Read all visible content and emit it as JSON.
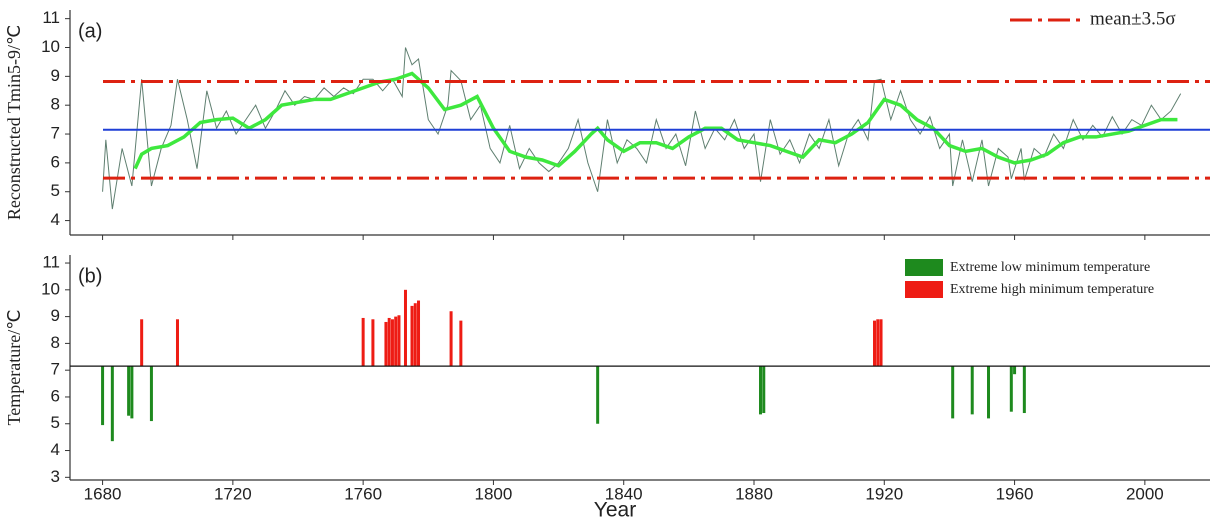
{
  "chart_data": [
    {
      "type": "line",
      "label": "(a)",
      "ylabel": "Reconstructed Tmin5-9/℃",
      "xlim": [
        1670,
        2020
      ],
      "ylim": [
        3.5,
        11.3
      ],
      "yticks": [
        4,
        5,
        6,
        7,
        8,
        9,
        10,
        11
      ],
      "mean": 7.15,
      "mean_color": "#1f3fd6",
      "bands": {
        "name": "mean±3.5σ",
        "color": "#dd2211",
        "values": [
          8.82,
          5.47
        ]
      },
      "legend": "upper right",
      "series": [
        {
          "color": "#5f7f70",
          "width": 1,
          "x": [
            1680,
            1681,
            1683,
            1686,
            1689,
            1692,
            1695,
            1698,
            1701,
            1703,
            1706,
            1709,
            1712,
            1715,
            1718,
            1721,
            1724,
            1727,
            1730,
            1733,
            1736,
            1739,
            1742,
            1745,
            1748,
            1751,
            1754,
            1757,
            1760,
            1763,
            1766,
            1769,
            1772,
            1773,
            1775,
            1777,
            1780,
            1783,
            1786,
            1787,
            1790,
            1793,
            1796,
            1799,
            1802,
            1805,
            1808,
            1811,
            1814,
            1817,
            1820,
            1823,
            1826,
            1829,
            1832,
            1835,
            1838,
            1841,
            1844,
            1847,
            1850,
            1853,
            1856,
            1859,
            1862,
            1865,
            1868,
            1871,
            1874,
            1877,
            1880,
            1882,
            1885,
            1888,
            1891,
            1894,
            1897,
            1900,
            1903,
            1906,
            1909,
            1912,
            1915,
            1917,
            1919,
            1922,
            1925,
            1928,
            1931,
            1934,
            1937,
            1940,
            1941,
            1944,
            1947,
            1950,
            1952,
            1955,
            1958,
            1959,
            1962,
            1963,
            1966,
            1969,
            1972,
            1975,
            1978,
            1981,
            1984,
            1987,
            1990,
            1993,
            1996,
            1999,
            2002,
            2005,
            2008,
            2011
          ],
          "values": [
            5.0,
            6.8,
            4.4,
            6.5,
            5.2,
            8.9,
            5.2,
            6.5,
            7.3,
            8.9,
            7.5,
            5.8,
            8.5,
            7.2,
            7.8,
            7.0,
            7.5,
            8.0,
            7.2,
            7.8,
            8.5,
            8.0,
            8.3,
            8.2,
            8.6,
            8.3,
            8.6,
            8.4,
            8.9,
            8.9,
            8.5,
            8.9,
            8.3,
            10.0,
            9.4,
            9.6,
            7.5,
            7.0,
            8.0,
            9.2,
            8.85,
            7.5,
            8.0,
            6.5,
            6.0,
            7.3,
            5.8,
            6.5,
            6.0,
            5.7,
            6.0,
            6.5,
            7.5,
            6.0,
            5.0,
            7.5,
            6.0,
            6.8,
            6.5,
            6.0,
            7.5,
            6.5,
            7.0,
            5.9,
            7.8,
            6.5,
            7.2,
            6.8,
            7.5,
            6.5,
            7.0,
            5.35,
            7.5,
            6.3,
            6.8,
            6.0,
            7.0,
            6.5,
            7.5,
            5.9,
            7.0,
            7.5,
            6.8,
            8.85,
            8.9,
            7.5,
            8.5,
            7.5,
            7.0,
            7.6,
            6.5,
            7.0,
            5.2,
            6.8,
            5.35,
            6.8,
            5.2,
            6.5,
            6.2,
            5.45,
            6.5,
            5.4,
            6.5,
            6.2,
            7.0,
            6.5,
            7.5,
            6.8,
            7.3,
            6.9,
            7.6,
            7.0,
            7.5,
            7.3,
            8.0,
            7.5,
            7.8,
            8.4
          ]
        },
        {
          "color": "#3ee83e",
          "width": 3.5,
          "x": [
            1690,
            1692,
            1695,
            1700,
            1705,
            1710,
            1715,
            1720,
            1725,
            1730,
            1735,
            1740,
            1745,
            1750,
            1755,
            1760,
            1765,
            1770,
            1775,
            1780,
            1785,
            1790,
            1795,
            1800,
            1805,
            1810,
            1815,
            1820,
            1825,
            1830,
            1832,
            1835,
            1840,
            1845,
            1850,
            1855,
            1860,
            1865,
            1870,
            1875,
            1880,
            1885,
            1890,
            1895,
            1900,
            1905,
            1910,
            1915,
            1920,
            1925,
            1930,
            1935,
            1940,
            1945,
            1950,
            1955,
            1960,
            1965,
            1970,
            1975,
            1980,
            1985,
            1990,
            1995,
            2000,
            2005,
            2010
          ],
          "values": [
            5.8,
            6.3,
            6.5,
            6.6,
            6.9,
            7.4,
            7.5,
            7.55,
            7.2,
            7.5,
            8.0,
            8.1,
            8.2,
            8.2,
            8.4,
            8.6,
            8.8,
            8.9,
            9.1,
            8.6,
            7.85,
            8.0,
            8.3,
            7.2,
            6.4,
            6.2,
            6.1,
            5.9,
            6.4,
            7.0,
            7.2,
            6.8,
            6.4,
            6.7,
            6.7,
            6.5,
            6.9,
            7.2,
            7.2,
            6.8,
            6.7,
            6.6,
            6.4,
            6.2,
            6.8,
            6.7,
            7.0,
            7.4,
            8.2,
            8.0,
            7.5,
            7.2,
            6.6,
            6.4,
            6.5,
            6.2,
            6.0,
            6.1,
            6.3,
            6.7,
            6.9,
            6.9,
            7.0,
            7.1,
            7.3,
            7.5,
            7.5
          ]
        }
      ]
    },
    {
      "type": "bar",
      "label": "(b)",
      "ylabel": "Temperature/℃",
      "xlabel": "Year",
      "xlim": [
        1670,
        2020
      ],
      "ylim": [
        2.9,
        11.3
      ],
      "yticks": [
        3,
        4,
        5,
        6,
        7,
        8,
        9,
        10,
        11
      ],
      "xticks": [
        1680,
        1720,
        1760,
        1800,
        1840,
        1880,
        1920,
        1960,
        2000
      ],
      "baseline": 7.15,
      "legend": "upper right",
      "series": [
        {
          "name": "Extreme low minimum temperature",
          "color": "#1e8a1e",
          "x": [
            1680,
            1683,
            1688,
            1689,
            1695,
            1832,
            1882,
            1883,
            1941,
            1947,
            1952,
            1959,
            1960,
            1963
          ],
          "values": [
            4.95,
            4.35,
            5.3,
            5.2,
            5.1,
            5.0,
            5.35,
            5.4,
            5.2,
            5.35,
            5.2,
            5.45,
            6.85,
            5.4
          ]
        },
        {
          "name": "Extreme high minimum temperature",
          "color": "#ee1c14",
          "x": [
            1692,
            1703,
            1760,
            1763,
            1767,
            1768,
            1769,
            1770,
            1771,
            1773,
            1775,
            1776,
            1777,
            1787,
            1790,
            1917,
            1918,
            1919
          ],
          "values": [
            8.9,
            8.9,
            8.95,
            8.9,
            8.8,
            8.95,
            8.9,
            9.0,
            9.05,
            10.0,
            9.4,
            9.5,
            9.6,
            9.2,
            8.85,
            8.85,
            8.9,
            8.9
          ]
        }
      ]
    }
  ]
}
